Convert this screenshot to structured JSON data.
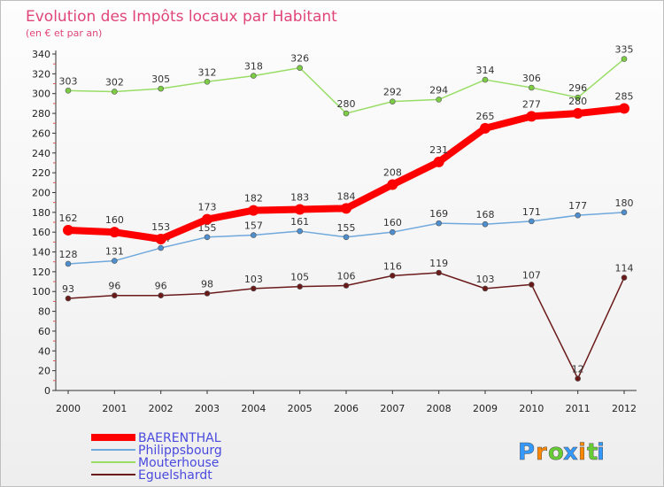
{
  "colors": {
    "BAERENTHAL": "#ff0000",
    "Philippsbourg": "#6fa8dc",
    "Mouterhouse": "#99dd66",
    "Eguelshardt": "#6b1a1a",
    "title": "#e0457a",
    "legend_text": "#4a4adf",
    "axis": "#333333"
  },
  "logo": {
    "letters": [
      "P",
      "r",
      "o",
      "x",
      "i",
      "t",
      "i"
    ],
    "colors": [
      "#3399ff",
      "#ff8800",
      "#66cc33",
      "#3399ff",
      "#ff8800",
      "#66cc33",
      "#3399ff"
    ]
  },
  "chart_data": {
    "type": "line",
    "title": "Evolution des Impôts locaux par Habitant",
    "subtitle": "(en € et par an)",
    "xlabel": "",
    "ylabel": "",
    "x": [
      "2000",
      "2001",
      "2002",
      "2003",
      "2004",
      "2005",
      "2006",
      "2007",
      "2008",
      "2009",
      "2010",
      "2011",
      "2012"
    ],
    "ylim": [
      0,
      340
    ],
    "yticks": [
      0,
      20,
      40,
      60,
      80,
      100,
      120,
      140,
      160,
      180,
      200,
      220,
      240,
      260,
      280,
      300,
      320,
      340
    ],
    "grid": false,
    "legend_position": "bottom-left",
    "series": [
      {
        "name": "BAERENTHAL",
        "values": [
          162,
          160,
          153,
          173,
          182,
          183,
          184,
          208,
          231,
          265,
          277,
          280,
          285
        ]
      },
      {
        "name": "Philippsbourg",
        "values": [
          128,
          131,
          144,
          155,
          157,
          161,
          155,
          160,
          169,
          168,
          171,
          177,
          180
        ]
      },
      {
        "name": "Mouterhouse",
        "values": [
          303,
          302,
          305,
          312,
          318,
          326,
          280,
          292,
          294,
          314,
          306,
          296,
          335
        ]
      },
      {
        "name": "Eguelshardt",
        "values": [
          93,
          96,
          96,
          98,
          103,
          105,
          106,
          116,
          119,
          103,
          107,
          12,
          114
        ]
      }
    ]
  }
}
